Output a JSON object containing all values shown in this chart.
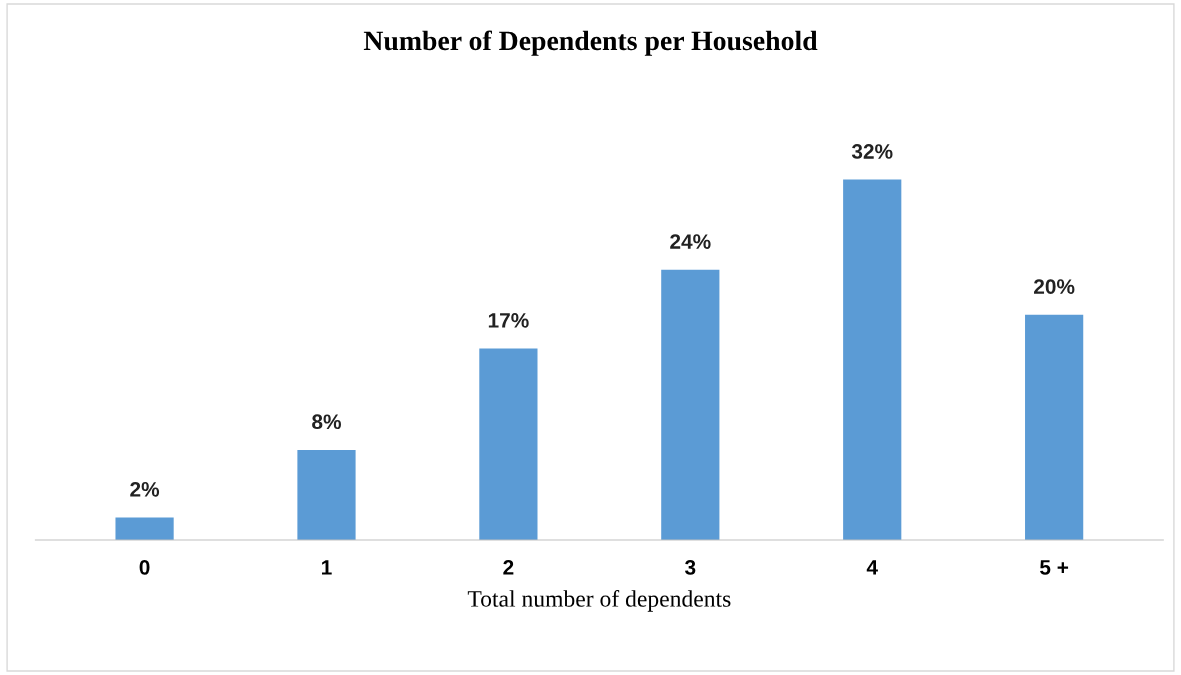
{
  "chart_data": {
    "type": "bar",
    "title": "Number of Dependents per Household",
    "xlabel": "Total number of dependents",
    "categories": [
      "0",
      "1",
      "2",
      "3",
      "4",
      "5 +"
    ],
    "values": [
      2,
      8,
      17,
      24,
      32,
      20
    ],
    "value_labels": [
      "2%",
      "8%",
      "17%",
      "24%",
      "32%",
      "20%"
    ],
    "color": "#5b9bd5"
  }
}
